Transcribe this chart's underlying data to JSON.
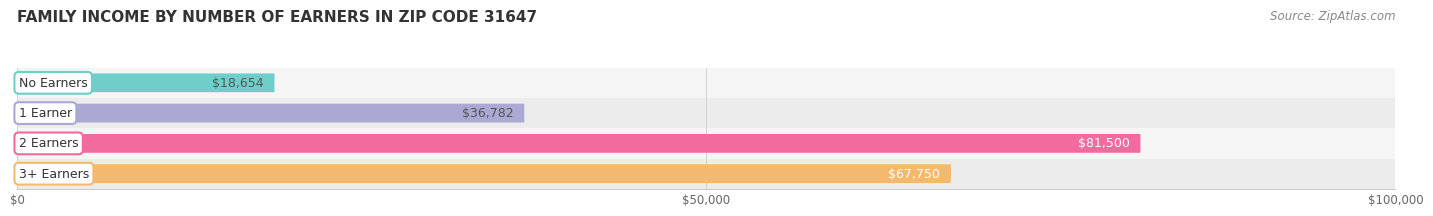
{
  "title": "FAMILY INCOME BY NUMBER OF EARNERS IN ZIP CODE 31647",
  "source": "Source: ZipAtlas.com",
  "categories": [
    "No Earners",
    "1 Earner",
    "2 Earners",
    "3+ Earners"
  ],
  "values": [
    18654,
    36782,
    81500,
    67750
  ],
  "labels": [
    "$18,654",
    "$36,782",
    "$81,500",
    "$67,750"
  ],
  "bar_colors": [
    "#6ecfca",
    "#a9a9d4",
    "#f06b9e",
    "#f5b96e"
  ],
  "label_colors": [
    "#555555",
    "#555555",
    "#ffffff",
    "#ffffff"
  ],
  "xlim": [
    0,
    100000
  ],
  "xticks": [
    0,
    50000,
    100000
  ],
  "xticklabels": [
    "$0",
    "$50,000",
    "$100,000"
  ],
  "background_color": "#ffffff",
  "title_fontsize": 11,
  "source_fontsize": 8.5,
  "label_fontsize": 9,
  "category_fontsize": 9,
  "bar_height": 0.62,
  "row_bg_colors": [
    "#f5f5f5",
    "#ececec"
  ]
}
